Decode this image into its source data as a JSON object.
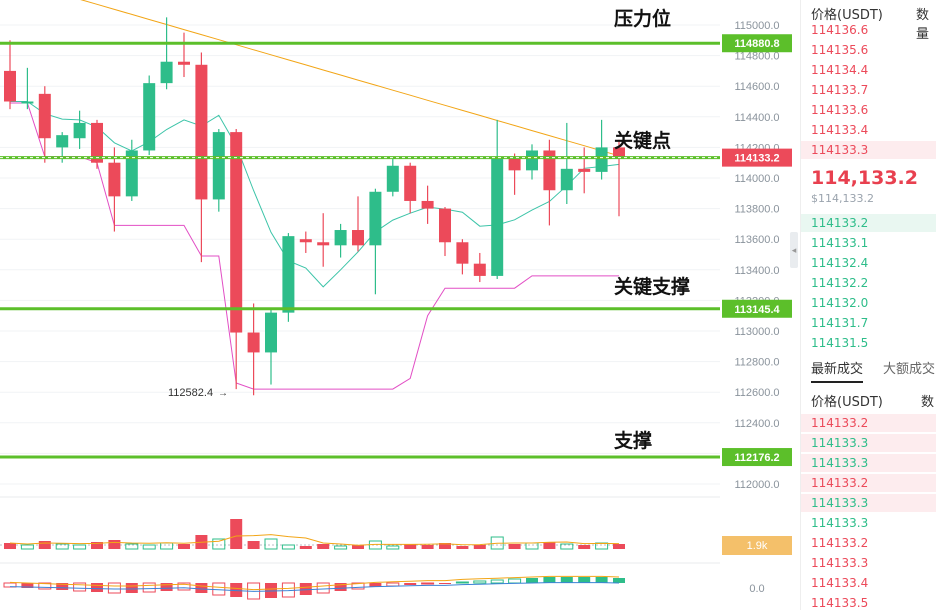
{
  "annotations": {
    "resistance": "压力位",
    "key_point": "关键点",
    "key_support": "关键支撑",
    "support": "支撑"
  },
  "level_tags": {
    "resistance": "114880.8",
    "key_point": "114133.2",
    "key_support": "113145.4",
    "support": "112176.2"
  },
  "low_marker": "112582.4",
  "volume_tag": "1.9k",
  "macd_tag": "0.0",
  "order_book": {
    "price_header": "价格(USDT)",
    "qty_header": "数量",
    "asks": [
      "114136.6",
      "114135.6",
      "114134.4",
      "114133.7",
      "114133.6",
      "114133.4",
      "114133.3"
    ],
    "mid_price": "114,133.2",
    "mid_sub": "$114,133.2",
    "bids": [
      "114133.2",
      "114133.1",
      "114132.4",
      "114132.2",
      "114132.0",
      "114131.7",
      "114131.5"
    ]
  },
  "trades": {
    "tab_latest": "最新成交",
    "tab_large": "大额成交",
    "price_header": "价格(USDT)",
    "qty_header": "数量",
    "rows": [
      {
        "price": "114133.2",
        "side": "sell"
      },
      {
        "price": "114133.3",
        "side": "buy"
      },
      {
        "price": "114133.3",
        "side": "buy"
      },
      {
        "price": "114133.2",
        "side": "sell"
      },
      {
        "price": "114133.3",
        "side": "buy"
      },
      {
        "price": "114133.3",
        "side": "buy"
      },
      {
        "price": "114133.2",
        "side": "sell"
      },
      {
        "price": "114133.3",
        "side": "sell"
      },
      {
        "price": "114133.4",
        "side": "sell"
      },
      {
        "price": "114133.5",
        "side": "sell"
      }
    ]
  },
  "colors": {
    "up": "#2ebd8a",
    "down": "#ec4a5a",
    "level_line": "#5cbf2a",
    "ma_short": "#3cc4a8",
    "ma_long": "#f2a516",
    "ma_pink": "#e24fc5"
  },
  "chart_data": {
    "type": "candlestick",
    "y_ticks": [
      115000,
      114800,
      114600,
      114400,
      114200,
      114000,
      113800,
      113600,
      113400,
      113200,
      113000,
      112800,
      112600,
      112400,
      112200,
      112000
    ],
    "levels": [
      114880.8,
      114133.2,
      113145.4,
      112176.2
    ],
    "candles": [
      {
        "o": 114700,
        "h": 114900,
        "l": 114450,
        "c": 114500
      },
      {
        "o": 114500,
        "h": 114720,
        "l": 114450,
        "c": 114500
      },
      {
        "o": 114550,
        "h": 114600,
        "l": 114100,
        "c": 114260
      },
      {
        "o": 114200,
        "h": 114300,
        "l": 114100,
        "c": 114280
      },
      {
        "o": 114260,
        "h": 114440,
        "l": 114190,
        "c": 114360
      },
      {
        "o": 114360,
        "h": 114380,
        "l": 114060,
        "c": 114100
      },
      {
        "o": 114100,
        "h": 114200,
        "l": 113650,
        "c": 113880
      },
      {
        "o": 113880,
        "h": 114250,
        "l": 113850,
        "c": 114180
      },
      {
        "o": 114180,
        "h": 114670,
        "l": 114150,
        "c": 114620
      },
      {
        "o": 114620,
        "h": 115050,
        "l": 114580,
        "c": 114760
      },
      {
        "o": 114760,
        "h": 114950,
        "l": 114660,
        "c": 114740
      },
      {
        "o": 114740,
        "h": 114820,
        "l": 113450,
        "c": 113860
      },
      {
        "o": 113860,
        "h": 114320,
        "l": 113780,
        "c": 114300
      },
      {
        "o": 114300,
        "h": 114320,
        "l": 112620,
        "c": 112990
      },
      {
        "o": 112990,
        "h": 113180,
        "l": 112580,
        "c": 112860
      },
      {
        "o": 112860,
        "h": 113140,
        "l": 112650,
        "c": 113120
      },
      {
        "o": 113120,
        "h": 113640,
        "l": 113060,
        "c": 113620
      },
      {
        "o": 113600,
        "h": 113650,
        "l": 113510,
        "c": 113580
      },
      {
        "o": 113580,
        "h": 113770,
        "l": 113420,
        "c": 113560
      },
      {
        "o": 113560,
        "h": 113700,
        "l": 113480,
        "c": 113660
      },
      {
        "o": 113660,
        "h": 113880,
        "l": 113520,
        "c": 113560
      },
      {
        "o": 113560,
        "h": 113930,
        "l": 113240,
        "c": 113910
      },
      {
        "o": 113910,
        "h": 114130,
        "l": 113880,
        "c": 114080
      },
      {
        "o": 114080,
        "h": 114100,
        "l": 113770,
        "c": 113850
      },
      {
        "o": 113850,
        "h": 113950,
        "l": 113700,
        "c": 113800
      },
      {
        "o": 113800,
        "h": 113810,
        "l": 113490,
        "c": 113580
      },
      {
        "o": 113580,
        "h": 113600,
        "l": 113370,
        "c": 113440
      },
      {
        "o": 113440,
        "h": 113510,
        "l": 113320,
        "c": 113360
      },
      {
        "o": 113360,
        "h": 114380,
        "l": 113340,
        "c": 114130
      },
      {
        "o": 114130,
        "h": 114160,
        "l": 113890,
        "c": 114050
      },
      {
        "o": 114050,
        "h": 114220,
        "l": 113990,
        "c": 114180
      },
      {
        "o": 114180,
        "h": 114250,
        "l": 113690,
        "c": 113920
      },
      {
        "o": 113920,
        "h": 114360,
        "l": 113830,
        "c": 114060
      },
      {
        "o": 114060,
        "h": 114200,
        "l": 113900,
        "c": 114040
      },
      {
        "o": 114040,
        "h": 114380,
        "l": 113990,
        "c": 114200
      },
      {
        "o": 114200,
        "h": 114250,
        "l": 113750,
        "c": 114133.2
      }
    ]
  }
}
